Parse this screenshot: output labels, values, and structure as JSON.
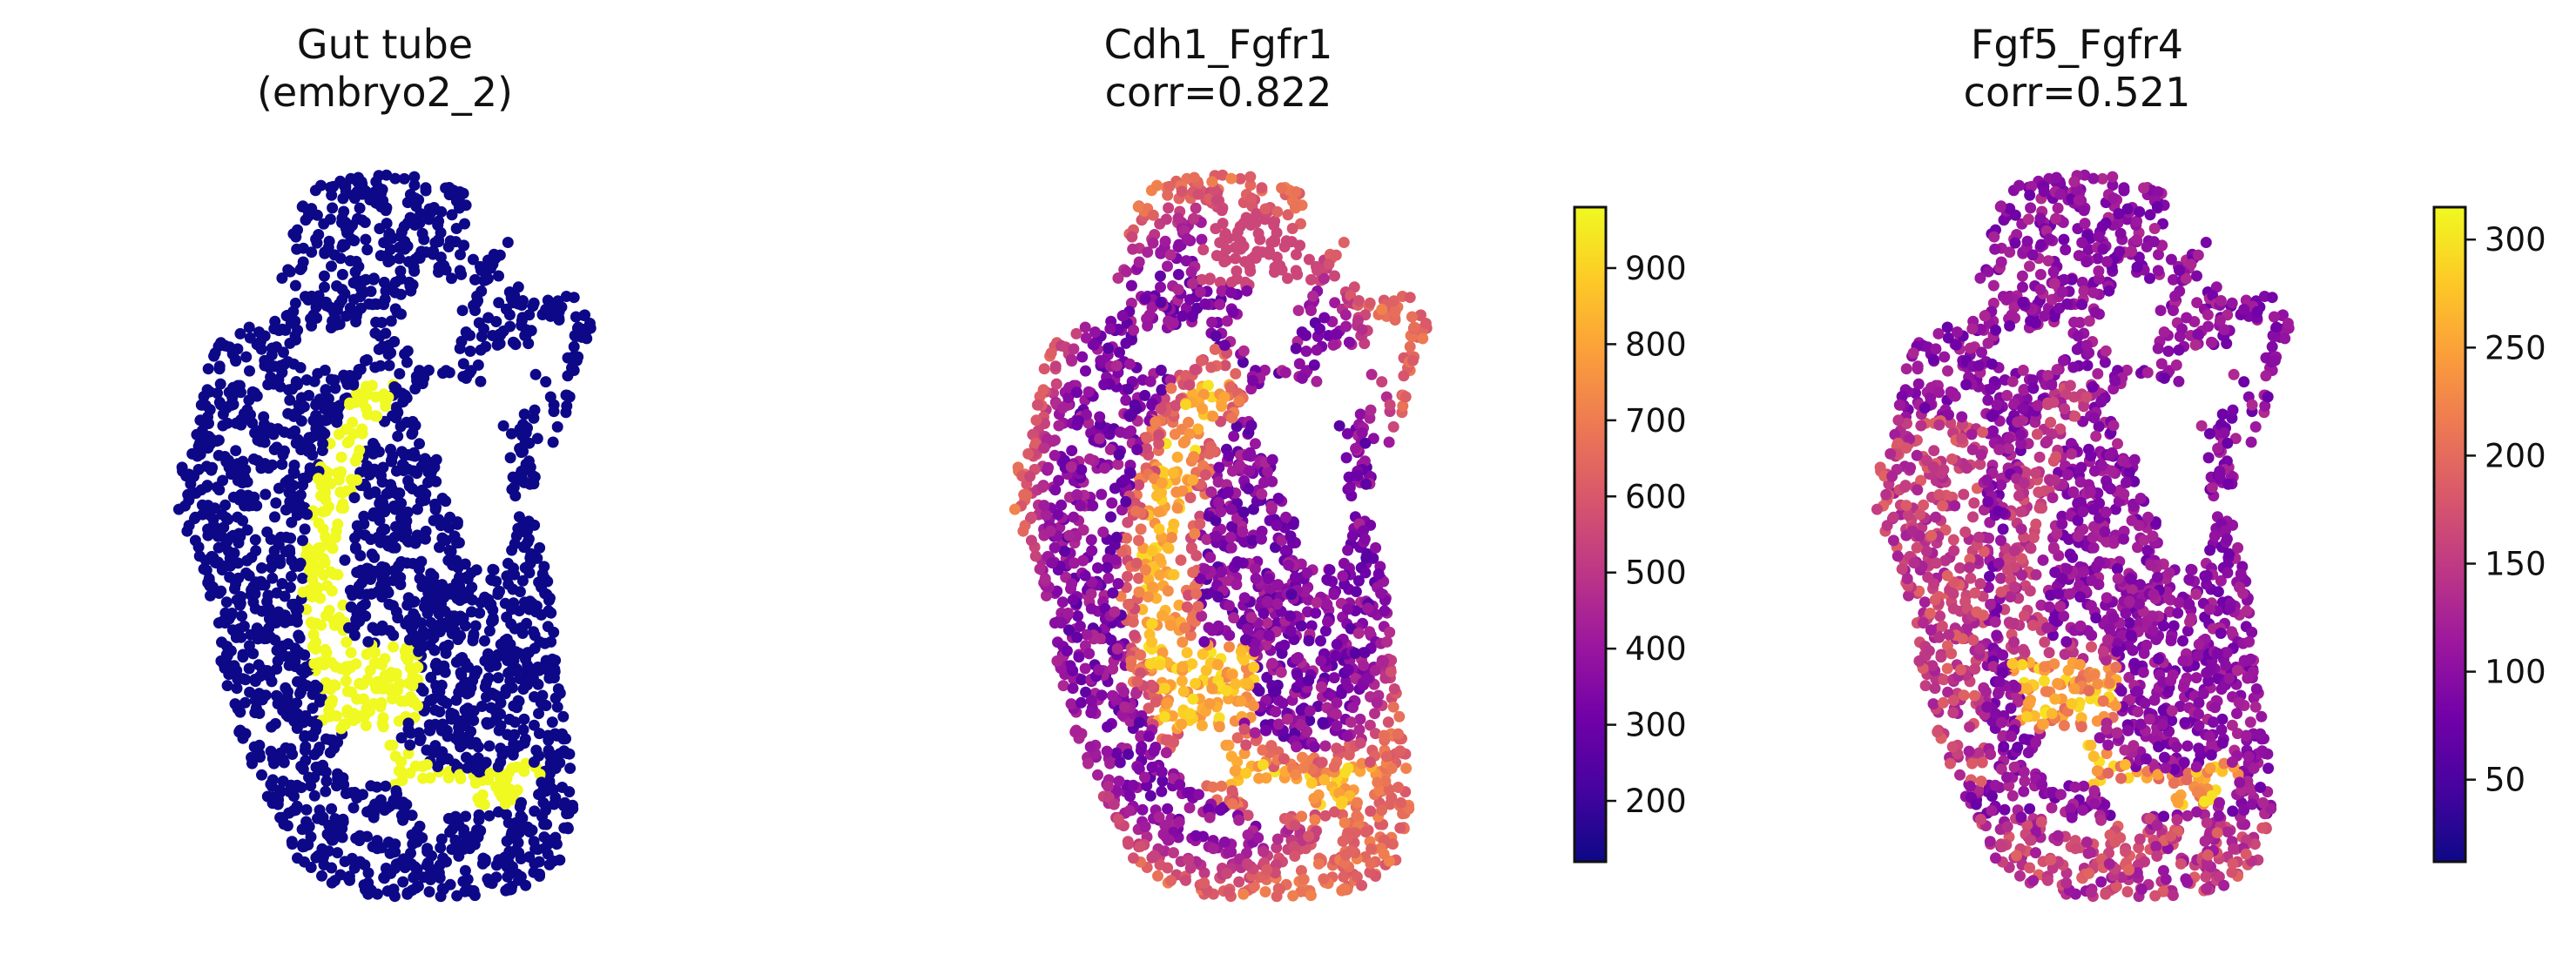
{
  "colormap_stops": [
    "#0d0887",
    "#46039f",
    "#7201a8",
    "#9c179e",
    "#bd3786",
    "#d8576b",
    "#ed7953",
    "#fb9f3a",
    "#fdca26",
    "#f0f921"
  ],
  "chart_data": [
    {
      "type": "scatter",
      "title_line1": "Gut tube",
      "title_line2": "(embryo2_2)",
      "value_range": [
        0,
        1
      ],
      "colorbar": false,
      "categorical": true,
      "category_colors": {
        "background": "#0d0887",
        "gut_tube": "#f0f921"
      },
      "description": "Spatial spot map; gut tube spots highlighted"
    },
    {
      "type": "scatter",
      "title_line1": "Cdh1_Fgfr1",
      "title_line2": "corr=0.822",
      "value_range": [
        120,
        980
      ],
      "colorbar": true,
      "colorbar_ticks": [
        {
          "value": 200,
          "label": "200"
        },
        {
          "value": 300,
          "label": "300"
        },
        {
          "value": 400,
          "label": "400"
        },
        {
          "value": 500,
          "label": "500"
        },
        {
          "value": 600,
          "label": "600"
        },
        {
          "value": 700,
          "label": "700"
        },
        {
          "value": 800,
          "label": "800"
        },
        {
          "value": 900,
          "label": "900"
        }
      ]
    },
    {
      "type": "scatter",
      "title_line1": "Fgf5_Fgfr4",
      "title_line2": "corr=0.521",
      "value_range": [
        12,
        315
      ],
      "colorbar": true,
      "colorbar_ticks": [
        {
          "value": 50,
          "label": "50"
        },
        {
          "value": 100,
          "label": "100"
        },
        {
          "value": 150,
          "label": "150"
        },
        {
          "value": 200,
          "label": "200"
        },
        {
          "value": 250,
          "label": "250"
        },
        {
          "value": 300,
          "label": "300"
        }
      ]
    }
  ]
}
